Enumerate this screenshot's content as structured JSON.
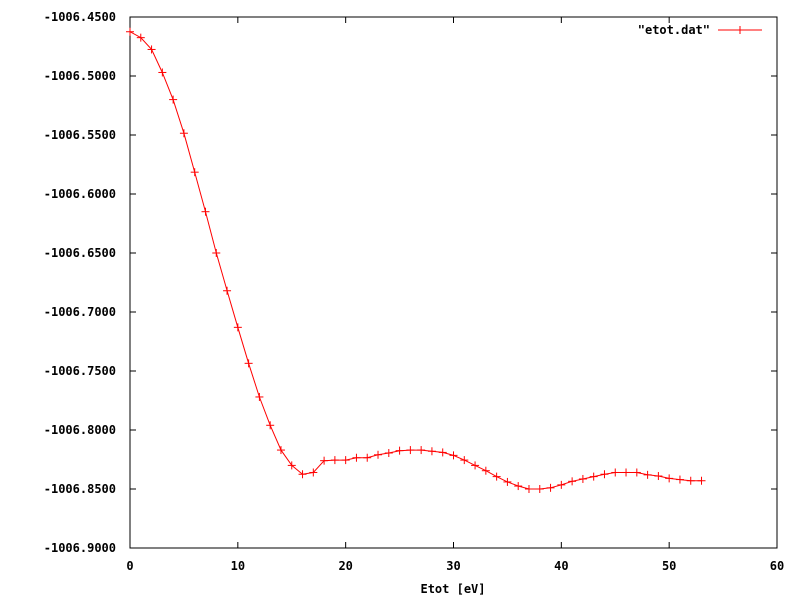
{
  "chart_data": {
    "type": "line",
    "title": "",
    "xlabel": "Etot [eV]",
    "ylabel": "",
    "xlim": [
      0,
      60
    ],
    "ylim": [
      -1006.9,
      -1006.45
    ],
    "x_ticks": [
      "0",
      "10",
      "20",
      "30",
      "40",
      "50",
      "60"
    ],
    "y_ticks": [
      "-1006.4500",
      "-1006.5000",
      "-1006.5500",
      "-1006.6000",
      "-1006.6500",
      "-1006.7000",
      "-1006.7500",
      "-1006.8000",
      "-1006.8500",
      "-1006.9000"
    ],
    "grid": false,
    "legend_position": "top-right",
    "series": [
      {
        "name": "\"etot.dat\"",
        "color": "#ff0000",
        "marker": "plus",
        "x": [
          0,
          1,
          2,
          3,
          4,
          5,
          6,
          7,
          8,
          9,
          10,
          11,
          12,
          13,
          14,
          15,
          16,
          17,
          18,
          19,
          20,
          21,
          22,
          23,
          24,
          25,
          26,
          27,
          28,
          29,
          30,
          31,
          32,
          33,
          34,
          35,
          36,
          37,
          38,
          39,
          40,
          41,
          42,
          43,
          44,
          45,
          46,
          47,
          48,
          49,
          50,
          51,
          52,
          53
        ],
        "y": [
          -1006.4625,
          -1006.4675,
          -1006.4775,
          -1006.497,
          -1006.52,
          -1006.5485,
          -1006.5815,
          -1006.615,
          -1006.65,
          -1006.682,
          -1006.713,
          -1006.7435,
          -1006.772,
          -1006.796,
          -1006.817,
          -1006.83,
          -1006.8375,
          -1006.836,
          -1006.826,
          -1006.8255,
          -1006.8255,
          -1006.8235,
          -1006.8235,
          -1006.821,
          -1006.8195,
          -1006.8175,
          -1006.817,
          -1006.817,
          -1006.818,
          -1006.819,
          -1006.8215,
          -1006.8255,
          -1006.83,
          -1006.8345,
          -1006.8395,
          -1006.844,
          -1006.8475,
          -1006.85,
          -1006.85,
          -1006.849,
          -1006.8465,
          -1006.8435,
          -1006.8415,
          -1006.8395,
          -1006.8375,
          -1006.836,
          -1006.836,
          -1006.836,
          -1006.838,
          -1006.839,
          -1006.841,
          -1006.842,
          -1006.843,
          -1006.843
        ]
      }
    ]
  }
}
